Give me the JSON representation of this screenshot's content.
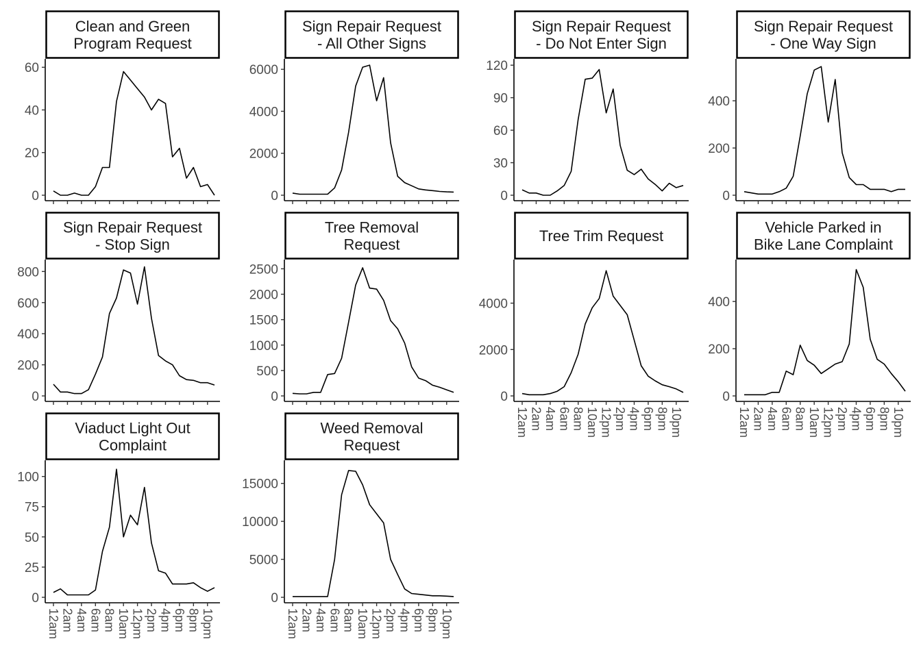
{
  "chart_data": {
    "type": "line",
    "facet_layout": "wrap, 4 columns, 3 rows",
    "x_tick_labels": [
      "12am",
      "2am",
      "4am",
      "6am",
      "8am",
      "10am",
      "12pm",
      "2pm",
      "4pm",
      "6pm",
      "8pm",
      "10pm"
    ],
    "x_tick_hours": [
      0,
      2,
      4,
      6,
      8,
      10,
      12,
      14,
      16,
      18,
      20,
      22
    ],
    "x_range": [
      0,
      23
    ],
    "grid": false,
    "line_color": "#000000",
    "panels": [
      {
        "title_lines": [
          "Clean and Green",
          "Program Request"
        ],
        "ylim": [
          0,
          62
        ],
        "yticks": [
          "0",
          "20",
          "40",
          "60"
        ],
        "ytick_values": [
          0,
          20,
          40,
          60
        ],
        "values": [
          2,
          0,
          0,
          1,
          0,
          0,
          4,
          13,
          13,
          44,
          58,
          54,
          50,
          46,
          40,
          45,
          43,
          18,
          22,
          8,
          13,
          4,
          5,
          0
        ]
      },
      {
        "title_lines": [
          "Sign Repair Request",
          "- All Other Signs"
        ],
        "ylim": [
          0,
          6300
        ],
        "yticks": [
          "0",
          "2000",
          "4000",
          "6000"
        ],
        "ytick_values": [
          0,
          2000,
          4000,
          6000
        ],
        "values": [
          100,
          50,
          50,
          50,
          50,
          50,
          350,
          1200,
          3000,
          5200,
          6100,
          6200,
          4500,
          5600,
          2500,
          900,
          600,
          450,
          300,
          250,
          220,
          180,
          160,
          150
        ]
      },
      {
        "title_lines": [
          "Sign Repair Request",
          "- Do Not Enter Sign"
        ],
        "ylim": [
          0,
          122
        ],
        "yticks": [
          "0",
          "30",
          "60",
          "90",
          "120"
        ],
        "ytick_values": [
          0,
          30,
          60,
          90,
          120
        ],
        "values": [
          5,
          2,
          2,
          0,
          0,
          4,
          9,
          22,
          70,
          107,
          108,
          116,
          76,
          98,
          46,
          23,
          19,
          24,
          15,
          10,
          4,
          11,
          7,
          9
        ]
      },
      {
        "title_lines": [
          "Sign Repair Request",
          "- One Way Sign"
        ],
        "ylim": [
          0,
          560
        ],
        "yticks": [
          "0",
          "200",
          "400"
        ],
        "ytick_values": [
          0,
          200,
          400
        ],
        "values": [
          15,
          10,
          5,
          5,
          5,
          15,
          30,
          80,
          250,
          430,
          530,
          545,
          310,
          490,
          180,
          75,
          45,
          45,
          25,
          25,
          25,
          15,
          25,
          25
        ]
      },
      {
        "title_lines": [
          "Sign Repair Request",
          "- Stop Sign"
        ],
        "ylim": [
          0,
          850
        ],
        "yticks": [
          "0",
          "200",
          "400",
          "600",
          "800"
        ],
        "ytick_values": [
          0,
          200,
          400,
          600,
          800
        ],
        "values": [
          75,
          25,
          25,
          15,
          15,
          40,
          140,
          250,
          530,
          630,
          810,
          790,
          590,
          830,
          500,
          260,
          225,
          200,
          130,
          105,
          100,
          85,
          85,
          70
        ]
      },
      {
        "title_lines": [
          "Tree Removal",
          "Request"
        ],
        "ylim": [
          0,
          2600
        ],
        "yticks": [
          "0",
          "500",
          "1000",
          "1500",
          "2000",
          "2500"
        ],
        "ytick_values": [
          0,
          500,
          1000,
          1500,
          2000,
          2500
        ],
        "values": [
          50,
          40,
          40,
          70,
          70,
          420,
          440,
          740,
          1450,
          2180,
          2520,
          2120,
          2100,
          1880,
          1480,
          1320,
          1040,
          570,
          350,
          300,
          210,
          170,
          120,
          70
        ]
      },
      {
        "title_lines": [
          "Tree Trim Request"
        ],
        "ylim": [
          0,
          5700
        ],
        "yticks": [
          "0",
          "2000",
          "4000"
        ],
        "ytick_values": [
          0,
          2000,
          4000
        ],
        "values": [
          100,
          50,
          50,
          50,
          100,
          200,
          400,
          1000,
          1800,
          3100,
          3800,
          4200,
          5400,
          4300,
          3900,
          3500,
          2400,
          1300,
          850,
          650,
          480,
          400,
          300,
          150
        ]
      },
      {
        "title_lines": [
          "Vehicle Parked in",
          "Bike Lane Complaint"
        ],
        "ylim": [
          0,
          560
        ],
        "yticks": [
          "0",
          "200",
          "400"
        ],
        "ytick_values": [
          0,
          200,
          400
        ],
        "values": [
          5,
          5,
          5,
          5,
          15,
          15,
          105,
          90,
          215,
          150,
          130,
          95,
          115,
          135,
          145,
          220,
          535,
          460,
          240,
          155,
          135,
          95,
          60,
          20
        ]
      },
      {
        "title_lines": [
          "Viaduct Light Out",
          "Complaint"
        ],
        "ylim": [
          0,
          110
        ],
        "yticks": [
          "0",
          "25",
          "50",
          "75",
          "100"
        ],
        "ytick_values": [
          0,
          25,
          50,
          75,
          100
        ],
        "values": [
          4,
          7,
          2,
          2,
          2,
          2,
          6,
          38,
          58,
          106,
          50,
          68,
          60,
          91,
          45,
          22,
          20,
          11,
          11,
          11,
          12,
          8,
          5,
          8
        ]
      },
      {
        "title_lines": [
          "Weed Removal",
          "Request"
        ],
        "ylim": [
          0,
          17500
        ],
        "yticks": [
          "0",
          "5000",
          "10000",
          "15000"
        ],
        "ytick_values": [
          0,
          5000,
          10000,
          15000
        ],
        "values": [
          100,
          100,
          100,
          100,
          100,
          100,
          5000,
          13500,
          16700,
          16600,
          14800,
          12200,
          11000,
          9800,
          5000,
          3000,
          1100,
          500,
          400,
          300,
          200,
          200,
          150,
          100
        ]
      }
    ]
  }
}
